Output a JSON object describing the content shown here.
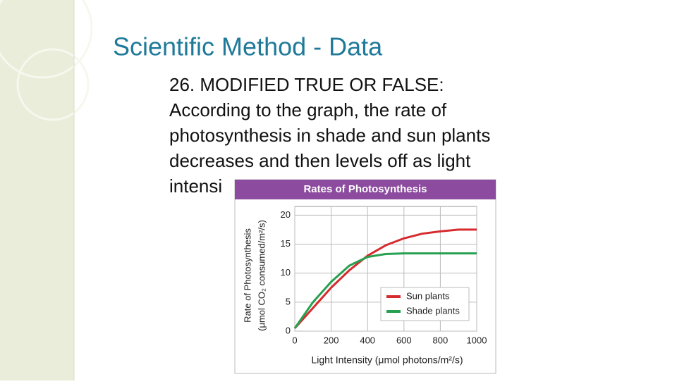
{
  "title": "Scientific Method - Data",
  "body": [
    "26. MODIFIED TRUE OR FALSE:",
    "According to the graph, the rate of",
    "photosynthesis in shade and sun plants",
    "decreases and then levels off as light",
    "intensi"
  ],
  "chart_data": {
    "type": "line",
    "title": "Rates of Photosynthesis",
    "y_label": [
      "Rate of Photosynthesis",
      "(μmol CO₂ consumed/m²/s)"
    ],
    "x_label": "Light Intensity (μmol photons/m²/s)",
    "x": [
      0,
      100,
      200,
      300,
      400,
      500,
      600,
      700,
      800,
      900,
      1000
    ],
    "series": [
      {
        "name": "Sun plants",
        "color": "#d62b2f",
        "values": [
          0.5,
          4,
          7.5,
          10.5,
          13,
          14.8,
          16,
          16.8,
          17.2,
          17.5,
          17.5
        ]
      },
      {
        "name": "Shade plants",
        "color": "#27a050",
        "values": [
          0.5,
          5,
          8.5,
          11.3,
          12.8,
          13.3,
          13.4,
          13.4,
          13.4,
          13.4,
          13.4
        ]
      }
    ],
    "xlim": [
      0,
      1000
    ],
    "xticks": [
      0,
      200,
      400,
      600,
      800,
      1000
    ],
    "ylim": [
      0,
      21.5
    ],
    "yticks": [
      0,
      5,
      10,
      15,
      20
    ],
    "grid": true,
    "legend": "lower right"
  }
}
